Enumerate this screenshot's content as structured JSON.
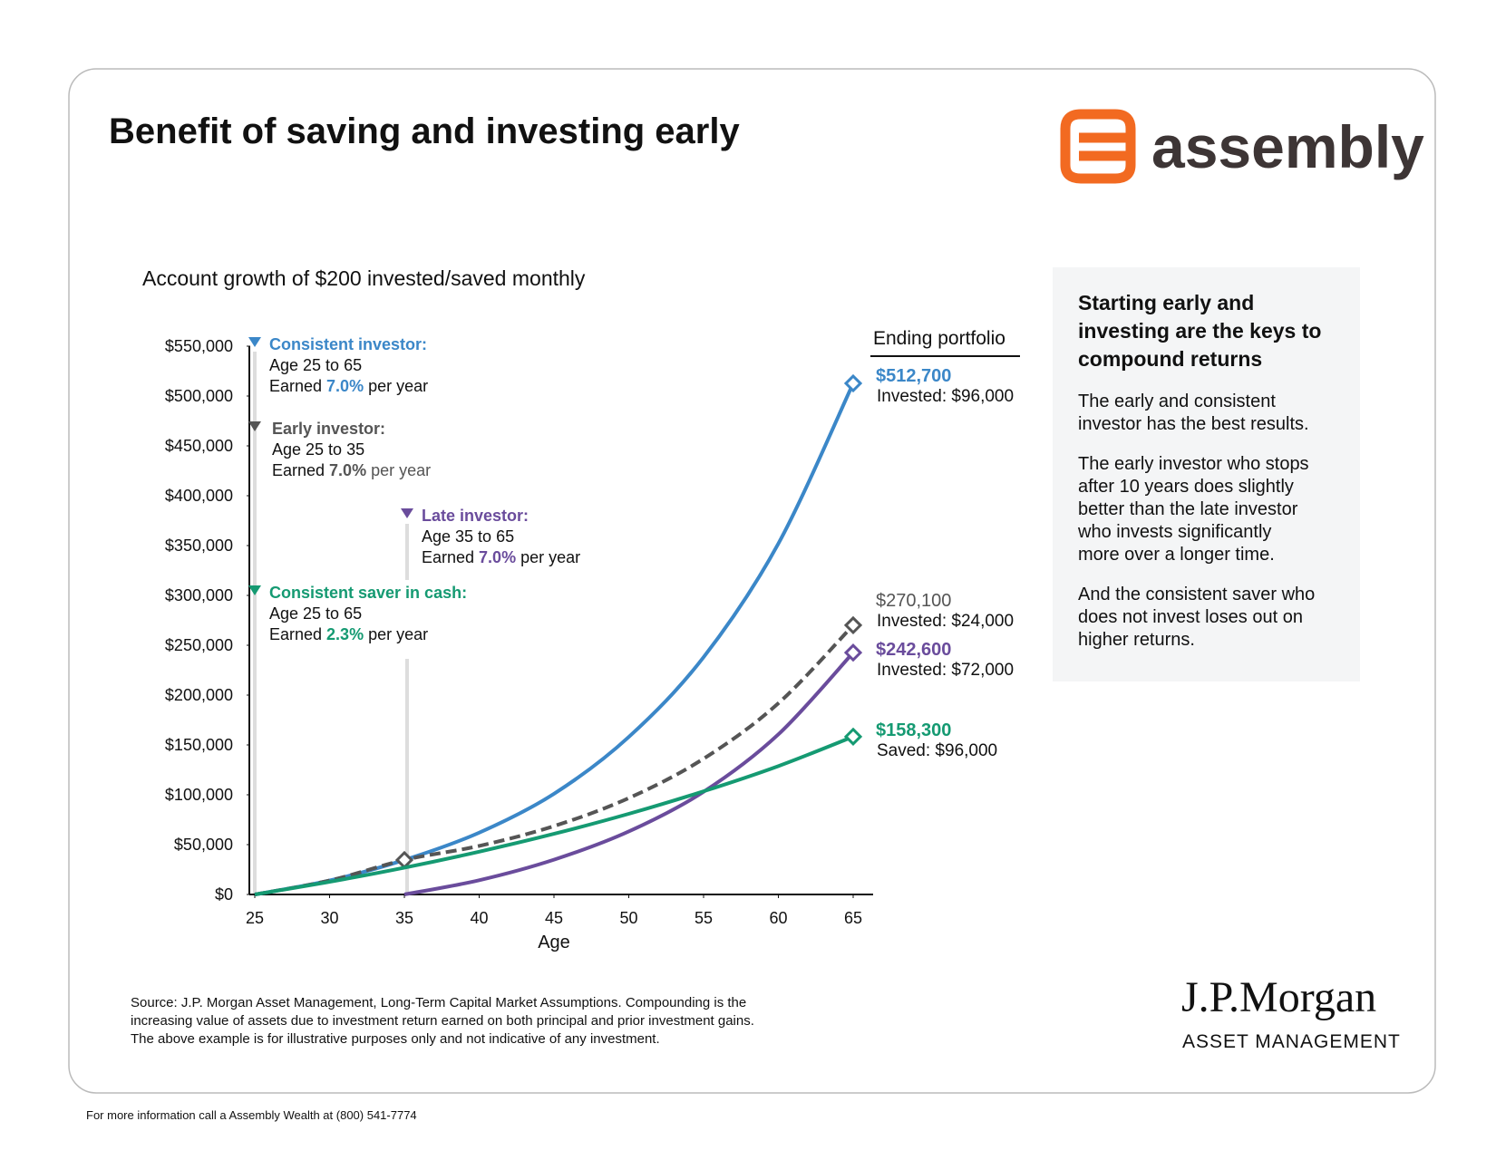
{
  "header": {
    "title": "Benefit of saving and investing early",
    "logo": "assembly"
  },
  "chart_data": {
    "type": "line",
    "subtitle": "Account growth of $200 invested/saved monthly",
    "xlabel": "Age",
    "ending_header": "Ending portfolio",
    "x": [
      25,
      30,
      35,
      40,
      45,
      50,
      55,
      60,
      65
    ],
    "xlim": [
      25,
      65
    ],
    "xticks": [
      25,
      30,
      35,
      40,
      45,
      50,
      55,
      60,
      65
    ],
    "ylim": [
      0,
      550000
    ],
    "yticks": [
      {
        "value": 0,
        "label": "$0"
      },
      {
        "value": 50000,
        "label": "$50,000"
      },
      {
        "value": 100000,
        "label": "$100,000"
      },
      {
        "value": 150000,
        "label": "$150,000"
      },
      {
        "value": 200000,
        "label": "$200,000"
      },
      {
        "value": 250000,
        "label": "$250,000"
      },
      {
        "value": 300000,
        "label": "$300,000"
      },
      {
        "value": 350000,
        "label": "$350,000"
      },
      {
        "value": 400000,
        "label": "$400,000"
      },
      {
        "value": 450000,
        "label": "$450,000"
      },
      {
        "value": 500000,
        "label": "$500,000"
      },
      {
        "value": 550000,
        "label": "$550,000"
      }
    ],
    "series": [
      {
        "name": "Consistent investor:",
        "color": "#3b87c8",
        "dashed": false,
        "age_range": "Age 25 to 65",
        "earned": "Earned",
        "rate": "7.0%",
        "per": "per year",
        "values": [
          0,
          14000,
          34600,
          62000,
          101000,
          158000,
          238000,
          352000,
          512700
        ],
        "value_labels": [
          null,
          null,
          null,
          null,
          null,
          null,
          null,
          null,
          "$512,700"
        ],
        "end_note": "Invested: $96,000"
      },
      {
        "name": "Early investor:",
        "color": "#555555",
        "dashed": true,
        "age_range": "Age 25 to 35",
        "earned": "Earned",
        "rate": "7.0%",
        "per": "per year",
        "values": [
          0,
          14000,
          34600,
          48700,
          68600,
          96700,
          136200,
          191800,
          270100
        ],
        "value_labels": [
          null,
          null,
          null,
          null,
          null,
          null,
          null,
          null,
          "$270,100"
        ],
        "end_note": "Invested: $24,000"
      },
      {
        "name": "Late investor:",
        "color": "#6a4c9c",
        "dashed": false,
        "age_range": "Age 35 to 65",
        "earned": "Earned",
        "rate": "7.0%",
        "per": "per year",
        "values": [
          null,
          null,
          0,
          14300,
          34900,
          63200,
          103000,
          160600,
          242600
        ],
        "value_labels": [
          null,
          null,
          null,
          null,
          null,
          null,
          null,
          null,
          "$242,600"
        ],
        "end_note": "Invested: $72,000"
      },
      {
        "name": "Consistent saver in cash:",
        "color": "#159a72",
        "dashed": false,
        "age_range": "Age 25 to 65",
        "earned": "Earned",
        "rate": "2.3%",
        "per": "per year",
        "values": [
          0,
          12700,
          26900,
          42900,
          60800,
          80900,
          103500,
          128800,
          158300
        ],
        "value_labels": [
          null,
          null,
          null,
          null,
          null,
          null,
          null,
          null,
          "$158,300"
        ],
        "end_note": "Saved: $96,000"
      }
    ]
  },
  "panel": {
    "heading": [
      "Starting early and",
      "investing are the keys to",
      "compound returns"
    ],
    "paragraphs": [
      [
        "The early and consistent",
        "investor has the best results."
      ],
      [
        "The early investor who stops",
        "after 10 years does slightly",
        "better than the late investor",
        "who invests significantly",
        "more over a longer time."
      ],
      [
        "And the consistent saver who",
        "does not invest loses out on",
        "higher returns."
      ]
    ]
  },
  "footnote": [
    "Source: J.P. Morgan Asset Management, Long-Term Capital Market Assumptions. Compounding is the",
    "increasing value of assets due to investment return earned on both principal and prior investment gains.",
    "The above example is for illustrative purposes only and not indicative of any investment."
  ],
  "brand": {
    "name": "J.P.Morgan",
    "division": "ASSET MANAGEMENT"
  },
  "footer": "For more information call a Assembly Wealth at (800) 541-7774"
}
